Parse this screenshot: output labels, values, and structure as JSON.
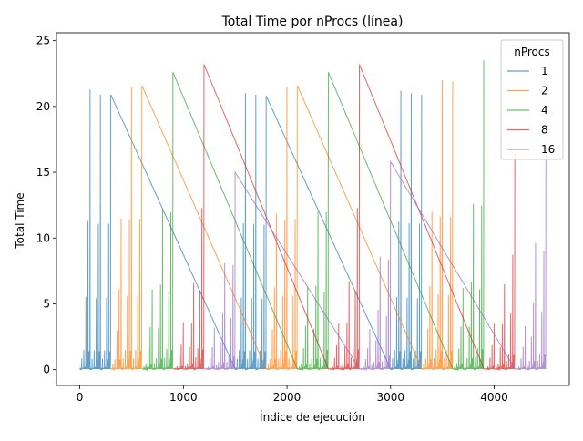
{
  "chart_data": {
    "type": "line",
    "title": "Total Time por nProcs (línea)",
    "xlabel": "Índice de ejecución",
    "ylabel": "Total Time",
    "xlim": [
      -225,
      4725
    ],
    "ylim": [
      -1.2,
      25.6
    ],
    "xticks": [
      0,
      1000,
      2000,
      3000,
      4000
    ],
    "yticks": [
      0,
      5,
      10,
      15,
      20,
      25
    ],
    "grid": false,
    "legend": {
      "title": "nProcs",
      "placement": "top-right"
    },
    "colors": {
      "1": "#1f77b4",
      "2": "#ff7f0e",
      "4": "#2ca02c",
      "8": "#d62728",
      "16": "#9467bd"
    },
    "series_style": {
      "opacity": 0.7
    },
    "pattern": {
      "description": "Each nProcs series has 300 runs per block, arranged as 3 matrix-size groups of 100 runs with increasing times; blocks repeat",
      "peaks_by_series": {
        "1": [
          21.3,
          20.9,
          20.9
        ],
        "2": [
          21.5,
          21.6,
          21.6
        ],
        "4": [
          12.2,
          22.6,
          22.6
        ],
        "8": [
          6.6,
          12.6,
          23.2
        ],
        "16": [
          8.1,
          15.0,
          15.8
        ]
      }
    },
    "series": [
      {
        "name": "1",
        "blocks": [
          [
            0,
            300
          ],
          [
            1500,
            1800
          ],
          [
            3000,
            3300
          ]
        ],
        "peaks": [
          21.3,
          20.9,
          20.9,
          21.0,
          20.9,
          20.8,
          21.2,
          21.0,
          20.9
        ]
      },
      {
        "name": "2",
        "blocks": [
          [
            300,
            600
          ],
          [
            1800,
            2100
          ],
          [
            3300,
            3600
          ]
        ],
        "peaks": [
          11.5,
          21.5,
          21.6,
          11.8,
          21.5,
          21.6,
          12.0,
          22.0,
          21.9
        ]
      },
      {
        "name": "4",
        "blocks": [
          [
            600,
            900
          ],
          [
            2100,
            2400
          ],
          [
            3600,
            3900
          ]
        ],
        "peaks": [
          6.1,
          12.2,
          22.6,
          6.3,
          12.0,
          22.6,
          6.2,
          12.6,
          23.5
        ]
      },
      {
        "name": "8",
        "blocks": [
          [
            900,
            1200
          ],
          [
            2400,
            2700
          ],
          [
            3900,
            4200
          ]
        ],
        "peaks": [
          3.6,
          6.6,
          23.2,
          3.5,
          6.7,
          23.2,
          3.5,
          6.5,
          16.5
        ]
      },
      {
        "name": "16",
        "blocks": [
          [
            1200,
            1500
          ],
          [
            2700,
            3000
          ],
          [
            4200,
            4500
          ]
        ],
        "peaks": [
          3.2,
          8.1,
          15.0,
          3.1,
          8.6,
          15.8,
          3.3,
          9.6,
          17.0
        ]
      }
    ]
  }
}
